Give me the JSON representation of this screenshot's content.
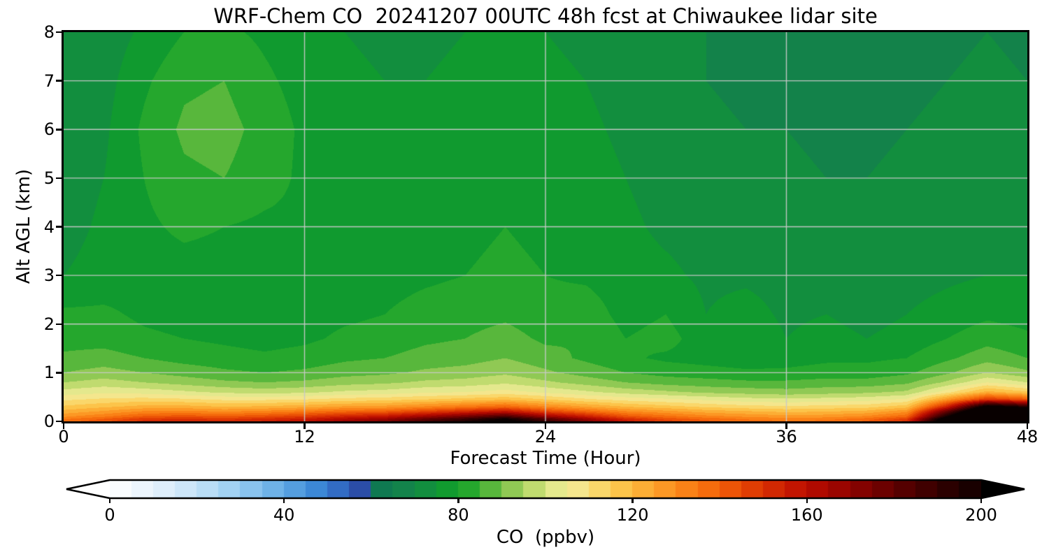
{
  "chart_data": {
    "type": "heatmap",
    "title": "WRF-Chem CO  20241207 00UTC 48h fcst at Chiwaukee lidar site",
    "xlabel": "Forecast Time (Hour)",
    "ylabel": "Alt AGL (km)",
    "units": "ppbv",
    "xlim": [
      0,
      48
    ],
    "ylim": [
      0,
      8
    ],
    "x_ticks": [
      0,
      12,
      24,
      36,
      48
    ],
    "y_ticks": [
      0,
      1,
      2,
      3,
      4,
      5,
      6,
      7,
      8
    ],
    "grid": true,
    "grid_x_hours": [
      12,
      24,
      36
    ],
    "grid_y_km": [
      1,
      2,
      3,
      4,
      5,
      6,
      7
    ],
    "grid_color": "#c9c9c9",
    "x_hours": [
      0,
      2,
      4,
      6,
      8,
      10,
      12,
      14,
      16,
      18,
      20,
      22,
      24,
      26,
      28,
      30,
      32,
      34,
      36,
      38,
      40,
      42,
      44,
      46,
      48
    ],
    "y_alt_km": [
      0,
      0.05,
      0.1,
      0.2,
      0.3,
      0.45,
      0.6,
      0.8,
      1.0,
      1.3,
      1.7,
      2.2,
      3.0,
      4.0,
      5.0,
      6.0,
      7.0,
      8.0
    ],
    "co_ppbv_rows_by_alt": [
      [
        138,
        144,
        152,
        154,
        152,
        156,
        160,
        168,
        174,
        186,
        196,
        208,
        190,
        174,
        158,
        148,
        142,
        138,
        136,
        137,
        141,
        152,
        220,
        258,
        252
      ],
      [
        134,
        140,
        148,
        150,
        148,
        151,
        155,
        162,
        167,
        179,
        189,
        201,
        183,
        167,
        152,
        143,
        138,
        134,
        132,
        133,
        137,
        147,
        215,
        255,
        250
      ],
      [
        129,
        134,
        141,
        143,
        141,
        144,
        148,
        154,
        158,
        167,
        176,
        186,
        168,
        156,
        143,
        137,
        132,
        129,
        127,
        128,
        131,
        139,
        200,
        250,
        245
      ],
      [
        122,
        126,
        131,
        132,
        130,
        132,
        135,
        139,
        141,
        147,
        153,
        159,
        147,
        139,
        131,
        127,
        123,
        121,
        119,
        120,
        122,
        129,
        180,
        235,
        225
      ],
      [
        116,
        119,
        122,
        122,
        120,
        121,
        123,
        126,
        127,
        131,
        135,
        139,
        131,
        125,
        120,
        117,
        114,
        112,
        111,
        112,
        113,
        118,
        155,
        210,
        195
      ],
      [
        109,
        111,
        112,
        111,
        109,
        109,
        110,
        112,
        113,
        115,
        117,
        119,
        115,
        111,
        108,
        106,
        104,
        102,
        101,
        102,
        103,
        106,
        128,
        150,
        142
      ],
      [
        102,
        104,
        103,
        101,
        99,
        98,
        99,
        101,
        102,
        104,
        105,
        107,
        104,
        101,
        98,
        96,
        94,
        93,
        92,
        93,
        94,
        96,
        108,
        122,
        116
      ],
      [
        95,
        97,
        95,
        93,
        91,
        90,
        91,
        93,
        94,
        96,
        97,
        99,
        96,
        93,
        90,
        88,
        87,
        86,
        86,
        87,
        87,
        89,
        96,
        105,
        100
      ],
      [
        90,
        92,
        90,
        88,
        86,
        85,
        86,
        88,
        89,
        91,
        92,
        94,
        91,
        88,
        85,
        83,
        82,
        81,
        81,
        82,
        82,
        84,
        89,
        95,
        91
      ],
      [
        86,
        87,
        85,
        83,
        82,
        81,
        82,
        84,
        85,
        87,
        88,
        90,
        87,
        84,
        81,
        79,
        78,
        77,
        78,
        79,
        79,
        80,
        84,
        88,
        85
      ],
      [
        83,
        83,
        81,
        80,
        79,
        78,
        79,
        81,
        82,
        84,
        85,
        87,
        84,
        85,
        80,
        82,
        77,
        79,
        75,
        77,
        75,
        77,
        80,
        83,
        81
      ],
      [
        81,
        81,
        79,
        78,
        77,
        77,
        78,
        79,
        80,
        82,
        83,
        84,
        82,
        83,
        78,
        80,
        75,
        77,
        74,
        75,
        73,
        75,
        77,
        79,
        78
      ],
      [
        75,
        77,
        78,
        78,
        78,
        78,
        79,
        78,
        78,
        79,
        80,
        81,
        80,
        79,
        77,
        76,
        74,
        74,
        73,
        73,
        72,
        73,
        74,
        75,
        75
      ],
      [
        73,
        76,
        79,
        81,
        80,
        79,
        79,
        78,
        77,
        78,
        79,
        80,
        79,
        78,
        76,
        74,
        73,
        72,
        72,
        71,
        71,
        72,
        73,
        74,
        73
      ],
      [
        72,
        75,
        80,
        84,
        85,
        82,
        79,
        77,
        76,
        77,
        78,
        79,
        78,
        77,
        75,
        73,
        72,
        71,
        71,
        70,
        70,
        71,
        72,
        73,
        72
      ],
      [
        71,
        74,
        81,
        86,
        87,
        83,
        79,
        77,
        76,
        76,
        77,
        78,
        77,
        76,
        74,
        72,
        71,
        70,
        70,
        69,
        69,
        70,
        71,
        72,
        71
      ],
      [
        71,
        73,
        79,
        84,
        85,
        81,
        78,
        76,
        75,
        75,
        76,
        77,
        76,
        75,
        73,
        71,
        70,
        69,
        69,
        68,
        69,
        69,
        70,
        71,
        70
      ],
      [
        70,
        72,
        76,
        80,
        81,
        79,
        77,
        75,
        74,
        74,
        75,
        76,
        75,
        74,
        72,
        71,
        70,
        69,
        68,
        68,
        68,
        69,
        69,
        70,
        69
      ]
    ],
    "colorbar": {
      "label": "CO  (ppbv)",
      "ticks": [
        0,
        40,
        80,
        120,
        160,
        200
      ],
      "vmin": 0,
      "vmax": 200,
      "extend": "both",
      "level_step": 5,
      "under_color": "#ffffff",
      "over_color": "#000000"
    },
    "colormap_stops": [
      [
        0,
        "#ffffff"
      ],
      [
        10,
        "#e6f2fc"
      ],
      [
        20,
        "#c4e2f8"
      ],
      [
        30,
        "#97ccf1"
      ],
      [
        40,
        "#60a9e4"
      ],
      [
        48,
        "#3a86d5"
      ],
      [
        54,
        "#2f63be"
      ],
      [
        58,
        "#2a4aa4"
      ],
      [
        60,
        "#0d7355"
      ],
      [
        65,
        "#117e4c"
      ],
      [
        70,
        "#158749"
      ],
      [
        75,
        "#0f9434"
      ],
      [
        80,
        "#12a12a"
      ],
      [
        85,
        "#38ad30"
      ],
      [
        90,
        "#77c148"
      ],
      [
        95,
        "#a8d160"
      ],
      [
        100,
        "#d8e57e"
      ],
      [
        105,
        "#f1ec9c"
      ],
      [
        110,
        "#f8e07e"
      ],
      [
        115,
        "#fbce55"
      ],
      [
        120,
        "#fcb93e"
      ],
      [
        125,
        "#fca32c"
      ],
      [
        130,
        "#fb8d1d"
      ],
      [
        135,
        "#f87710"
      ],
      [
        140,
        "#f26009"
      ],
      [
        145,
        "#e74804"
      ],
      [
        150,
        "#d93202"
      ],
      [
        155,
        "#cb1d01"
      ],
      [
        160,
        "#bb0d00"
      ],
      [
        165,
        "#a50600"
      ],
      [
        170,
        "#8e0300"
      ],
      [
        175,
        "#770100"
      ],
      [
        180,
        "#600000"
      ],
      [
        185,
        "#4a0000"
      ],
      [
        190,
        "#350000"
      ],
      [
        195,
        "#210000"
      ],
      [
        200,
        "#100000"
      ],
      [
        210,
        "#000000"
      ]
    ]
  }
}
